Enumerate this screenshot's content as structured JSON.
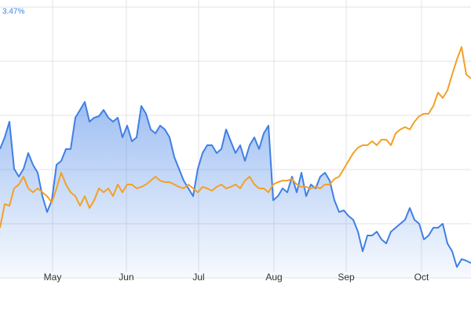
{
  "chart_data": {
    "type": "line",
    "annotation": "3.47%",
    "xlim": [
      0,
      100
    ],
    "xticks": [
      {
        "value": 11.17,
        "label": "May"
      },
      {
        "value": 26.83,
        "label": "Jun"
      },
      {
        "value": 42.17,
        "label": "Jul"
      },
      {
        "value": 58.17,
        "label": "Aug"
      },
      {
        "value": 73.5,
        "label": "Sep"
      },
      {
        "value": 89.5,
        "label": "Oct"
      }
    ],
    "ylim": [
      -10,
      15
    ],
    "yticks": [
      -10,
      -5,
      0,
      5,
      10,
      15
    ],
    "grid": true,
    "series": [
      {
        "color": "#3f7fe6",
        "area": true,
        "values": [
          1.89,
          2.97,
          4.42,
          0.07,
          -0.65,
          0.07,
          1.52,
          0.44,
          -0.29,
          -2.46,
          -3.92,
          -2.83,
          0.44,
          0.8,
          1.89,
          1.89,
          4.79,
          5.51,
          6.24,
          4.42,
          4.79,
          4.93,
          5.51,
          4.79,
          4.42,
          4.79,
          2.97,
          4.06,
          2.61,
          2.97,
          5.87,
          5.15,
          3.7,
          3.34,
          4.06,
          3.7,
          2.97,
          1.16,
          0.07,
          -1.02,
          -1.74,
          -2.46,
          0.07,
          1.52,
          2.25,
          2.25,
          1.52,
          1.89,
          3.7,
          2.61,
          1.52,
          2.25,
          0.8,
          2.25,
          2.97,
          1.89,
          3.34,
          4.06,
          -2.83,
          -2.46,
          -1.74,
          -2.1,
          -0.65,
          -2.1,
          -0.29,
          -2.46,
          -1.38,
          -1.74,
          -0.65,
          -0.29,
          -1.02,
          -2.83,
          -3.92,
          -3.77,
          -4.28,
          -4.64,
          -5.73,
          -7.54,
          -6.09,
          -6.09,
          -5.73,
          -6.45,
          -6.82,
          -5.73,
          -5.37,
          -5.0,
          -4.64,
          -3.55,
          -4.64,
          -5.0,
          -6.45,
          -6.09,
          -5.37,
          -5.37,
          -5.0,
          -6.82,
          -7.54,
          -8.99,
          -8.27,
          -8.41,
          -8.63
        ]
      },
      {
        "color": "#f4a024",
        "area": false,
        "values": [
          -5.37,
          -3.19,
          -3.34,
          -1.74,
          -1.38,
          -0.65,
          -1.74,
          -2.1,
          -1.74,
          -2.1,
          -2.46,
          -3.05,
          -1.74,
          -0.29,
          -1.38,
          -2.1,
          -2.46,
          -3.34,
          -2.46,
          -3.55,
          -2.83,
          -1.74,
          -2.1,
          -1.74,
          -2.46,
          -1.38,
          -2.1,
          -1.38,
          -1.38,
          -1.74,
          -1.6,
          -1.38,
          -1.02,
          -0.65,
          -1.02,
          -1.16,
          -1.16,
          -1.38,
          -1.6,
          -1.74,
          -1.38,
          -1.74,
          -2.1,
          -1.6,
          -1.74,
          -1.96,
          -1.6,
          -1.38,
          -1.74,
          -1.6,
          -1.38,
          -1.74,
          -1.02,
          -0.65,
          -1.38,
          -1.74,
          -1.74,
          -2.1,
          -1.38,
          -1.16,
          -1.02,
          -1.02,
          -0.87,
          -1.38,
          -1.6,
          -1.6,
          -1.74,
          -1.6,
          -1.74,
          -1.38,
          -1.38,
          -0.87,
          -0.65,
          0.07,
          0.8,
          1.52,
          2.03,
          2.25,
          2.25,
          2.61,
          2.25,
          2.76,
          2.76,
          2.25,
          3.34,
          3.7,
          3.92,
          3.7,
          4.42,
          4.93,
          5.15,
          5.15,
          5.87,
          7.11,
          6.6,
          7.32,
          8.77,
          10.15,
          11.31,
          8.77,
          8.41
        ]
      }
    ]
  }
}
